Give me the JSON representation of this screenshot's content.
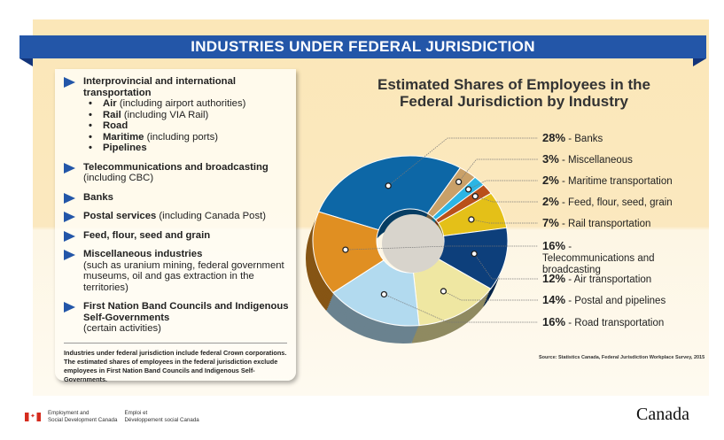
{
  "banner": "INDUSTRIES UNDER FEDERAL JURISDICTION",
  "panel": {
    "items": [
      {
        "bold": "Interprovincial and international transportation",
        "sub": [
          {
            "bold": "Air",
            "rest": " (including airport authorities)"
          },
          {
            "bold": "Rail",
            "rest": " (including VIA Rail)"
          },
          {
            "bold": "Road",
            "rest": ""
          },
          {
            "bold": "Maritime",
            "rest": " (including ports)"
          },
          {
            "bold": "Pipelines",
            "rest": ""
          }
        ]
      },
      {
        "bold": "Telecommunications and broadcasting",
        "rest": "(including CBC)"
      },
      {
        "bold": "Banks"
      },
      {
        "bold": "Postal services",
        "rest": " (including Canada Post)"
      },
      {
        "bold": "Feed, flour, seed and grain"
      },
      {
        "bold": "Miscellaneous industries",
        "rest": "(such as uranium mining, federal government museums, oil and gas extraction in the territories)"
      },
      {
        "bold": "First Nation Band Councils and Indigenous Self-Governments",
        "rest": "(certain activities)"
      }
    ],
    "note": "Industries under federal jurisdiction include federal Crown corporations. The estimated shares of employees in the federal jurisdiction exclude employees in First Nation Band Councils and Indigenous Self-Governments."
  },
  "chart_data": {
    "type": "pie",
    "variant": "donut-3d",
    "title": "Estimated Shares of Employees in the Federal Jurisdiction by Industry",
    "categories": [
      "Banks",
      "Miscellaneous",
      "Maritime transportation",
      "Feed, flour, seed, grain",
      "Rail transportation",
      "Air transportation",
      "Postal and pipelines",
      "Road transportation",
      "Telecommunications and broadcasting"
    ],
    "values": [
      28,
      3,
      2,
      2,
      7,
      12,
      14,
      16,
      16
    ],
    "labels": [
      "28%",
      "3%",
      "2%",
      "2%",
      "7%",
      "12%",
      "14%",
      "16%",
      "16%"
    ],
    "colors": [
      "#0d67a6",
      "#c9a068",
      "#2cb5e4",
      "#b9501a",
      "#e4c018",
      "#0d3f7b",
      "#efe7a2",
      "#b2daef",
      "#e08f22"
    ],
    "legend_order": [
      0,
      1,
      2,
      3,
      4,
      8,
      5,
      6,
      7
    ],
    "source": "Source: Statistics Canada, Federal Jurisdiction Workplace Survey, 2015"
  },
  "footer": {
    "dept_en_1": "Employment and",
    "dept_en_2": "Social Development Canada",
    "dept_fr_1": "Emploi et",
    "dept_fr_2": "Développement social Canada",
    "wordmark": "Canada"
  }
}
